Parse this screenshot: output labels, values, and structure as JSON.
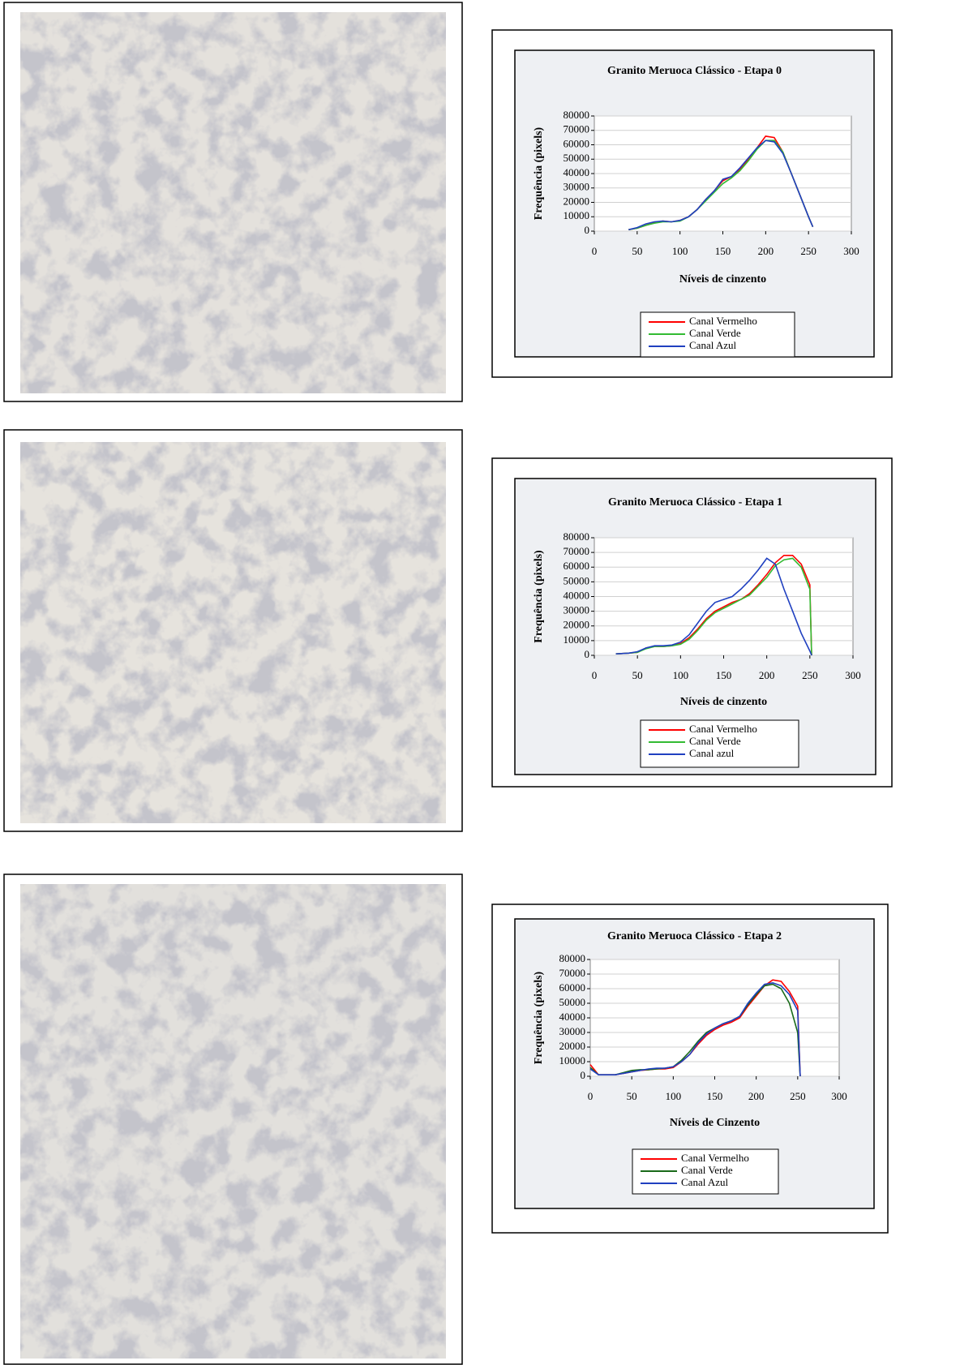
{
  "chart_data": [
    {
      "type": "line",
      "title": "Granito Meruoca Clássico - Etapa 0",
      "x_label": "Níveis de cinzento",
      "y_label": "Frequência (pixels)",
      "x": [
        40,
        50,
        60,
        70,
        80,
        90,
        100,
        110,
        120,
        130,
        140,
        150,
        160,
        170,
        180,
        190,
        200,
        210,
        220,
        230,
        240,
        250,
        255
      ],
      "series": [
        {
          "name": "Canal Vermelho",
          "color": "#ff0000",
          "values": [
            1000,
            2000,
            4000,
            6000,
            7000,
            6500,
            7500,
            10000,
            15000,
            22000,
            28000,
            35000,
            38000,
            43000,
            50000,
            58000,
            66000,
            65000,
            55000,
            40000,
            25000,
            10000,
            3000
          ]
        },
        {
          "name": "Canal Verde",
          "color": "#33bb33",
          "values": [
            1000,
            2000,
            4000,
            5500,
            6500,
            6500,
            7000,
            10000,
            15000,
            21000,
            27000,
            33000,
            37000,
            42000,
            49000,
            57000,
            63000,
            63000,
            55000,
            40000,
            25000,
            10000,
            3000
          ]
        },
        {
          "name": "Canal Azul",
          "color": "#2040c0",
          "values": [
            1000,
            2500,
            5000,
            6500,
            7000,
            6500,
            7500,
            10000,
            15000,
            22000,
            28000,
            36000,
            38000,
            44000,
            51000,
            58000,
            63000,
            62000,
            54000,
            40000,
            25000,
            10000,
            3000
          ]
        }
      ],
      "xlim": [
        0,
        300
      ],
      "xticks": [
        0,
        50,
        100,
        150,
        200,
        250,
        300
      ],
      "ylim": [
        0,
        80000
      ],
      "yticks": [
        0,
        10000,
        20000,
        30000,
        40000,
        50000,
        60000,
        70000,
        80000
      ],
      "grid": true
    },
    {
      "type": "line",
      "title": "Granito Meruoca Clássico - Etapa 1",
      "x_label": "Níveis de cinzento",
      "y_label": "Frequência (pixels)",
      "x": [
        25,
        40,
        50,
        60,
        70,
        80,
        90,
        100,
        110,
        120,
        130,
        140,
        150,
        160,
        170,
        180,
        190,
        200,
        210,
        220,
        230,
        240,
        250,
        252
      ],
      "series": [
        {
          "name": "Canal Vermelho",
          "color": "#ff0000",
          "values": [
            1000,
            1500,
            2000,
            5000,
            6000,
            6000,
            6500,
            8000,
            12000,
            18000,
            25000,
            30000,
            33000,
            36000,
            38000,
            42000,
            48000,
            55000,
            63000,
            68000,
            68000,
            62000,
            48000,
            0
          ]
        },
        {
          "name": "Canal Verde",
          "color": "#33bb33",
          "values": [
            1000,
            1500,
            2000,
            4500,
            6000,
            6000,
            6500,
            7500,
            11000,
            17000,
            24000,
            29000,
            32000,
            35000,
            38000,
            41000,
            47000,
            53000,
            61000,
            65000,
            66000,
            60000,
            45000,
            0
          ]
        },
        {
          "name": "Canal azul",
          "color": "#2040c0",
          "values": [
            1000,
            1500,
            2500,
            5000,
            6500,
            6500,
            7000,
            9000,
            14000,
            22000,
            30000,
            36000,
            38000,
            40000,
            45000,
            51000,
            58000,
            66000,
            62000,
            45000,
            30000,
            15000,
            3000,
            0
          ]
        }
      ],
      "xlim": [
        0,
        300
      ],
      "xticks": [
        0,
        50,
        100,
        150,
        200,
        250,
        300
      ],
      "ylim": [
        0,
        80000
      ],
      "yticks": [
        0,
        10000,
        20000,
        30000,
        40000,
        50000,
        60000,
        70000,
        80000
      ],
      "grid": true
    },
    {
      "type": "line",
      "title": "Granito Meruoca Clássico - Etapa 2",
      "x_label": "Níveis de Cinzento",
      "y_label": "Frequência (pixels)",
      "x": [
        0,
        10,
        20,
        30,
        40,
        50,
        60,
        70,
        80,
        90,
        100,
        110,
        120,
        130,
        140,
        150,
        160,
        170,
        180,
        190,
        200,
        210,
        220,
        230,
        240,
        250,
        253
      ],
      "series": [
        {
          "name": "Canal Vermelho",
          "color": "#ff0000",
          "values": [
            8000,
            1000,
            1000,
            1000,
            2000,
            3000,
            4000,
            4500,
            5000,
            5000,
            6000,
            10000,
            15000,
            22000,
            28000,
            32000,
            35000,
            37000,
            40000,
            48000,
            55000,
            62000,
            66000,
            65000,
            58000,
            48000,
            0
          ]
        },
        {
          "name": "Canal Verde",
          "color": "#1a6a1a",
          "values": [
            6000,
            1000,
            1000,
            1000,
            2500,
            4000,
            4500,
            4500,
            5000,
            5500,
            6500,
            11000,
            17000,
            24000,
            30000,
            33000,
            36000,
            38000,
            41000,
            49000,
            56000,
            62000,
            63000,
            60000,
            50000,
            30000,
            0
          ]
        },
        {
          "name": "Canal Azul",
          "color": "#2040c0",
          "values": [
            5000,
            1000,
            1000,
            1000,
            2000,
            3000,
            4000,
            5000,
            5500,
            5500,
            6500,
            10000,
            15000,
            23000,
            29000,
            33000,
            36000,
            38000,
            41000,
            50000,
            57000,
            63000,
            64000,
            62000,
            56000,
            45000,
            0
          ]
        }
      ],
      "xlim": [
        0,
        300
      ],
      "xticks": [
        0,
        50,
        100,
        150,
        200,
        250,
        300
      ],
      "ylim": [
        0,
        80000
      ],
      "yticks": [
        0,
        10000,
        20000,
        30000,
        40000,
        50000,
        60000,
        70000,
        80000
      ],
      "grid": true
    }
  ]
}
